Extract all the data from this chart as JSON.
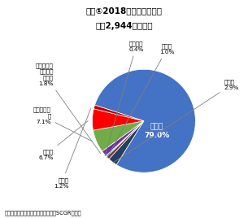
{
  "source": "（出所：サウジアラビア通貨庁よりSCGR作成）",
  "categories": [
    "鉱産品",
    "再輸出",
    "その他",
    "機械機器",
    "ベースメタルおよび同製品",
    "プラスチック",
    "化学品",
    "食料品"
  ],
  "values": [
    79.0,
    2.9,
    1.0,
    0.4,
    1.8,
    7.1,
    6.7,
    1.2
  ],
  "colors": [
    "#4472C4",
    "#243F60",
    "#7B3535",
    "#00B0F0",
    "#7030A0",
    "#70AD47",
    "#FF0000",
    "#C00000"
  ],
  "startangle": 162,
  "figsize": [
    3.05,
    2.68
  ],
  "dpi": 100
}
